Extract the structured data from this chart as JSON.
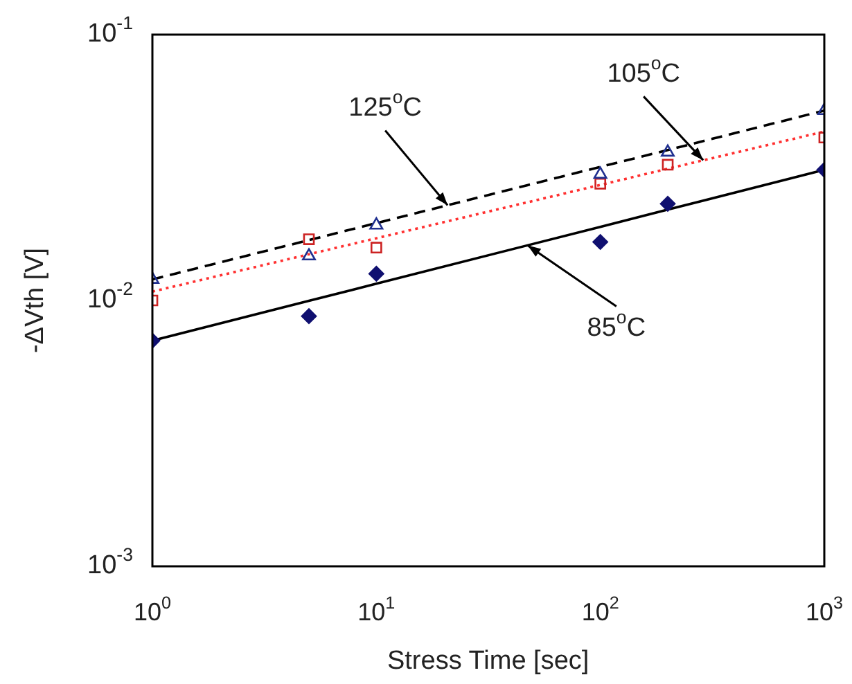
{
  "chart_data": {
    "type": "scatter",
    "xlabel": "Stress Time [sec]",
    "ylabel": "-ΔVth [V]",
    "log": "xy",
    "grid": false,
    "legend": false,
    "x": [
      1,
      5,
      10,
      100,
      200,
      1000
    ],
    "xlim": [
      1,
      1000
    ],
    "ylim": [
      0.001,
      0.1
    ],
    "xticks": [
      {
        "value": 1,
        "label": "10$^{0}$"
      },
      {
        "value": 10,
        "label": "10$^{1}$"
      },
      {
        "value": 100,
        "label": "10$^{2}$"
      },
      {
        "value": 1000,
        "label": "10$^{3}$"
      }
    ],
    "yticks": [
      {
        "value": 0.001,
        "label": "10$^{-3}$"
      },
      {
        "value": 0.01,
        "label": "10$^{-2}$"
      },
      {
        "value": 0.1,
        "label": "10$^{-1}$"
      }
    ],
    "series": [
      {
        "color": "#1f2f8f",
        "marker": "triangle",
        "values": [
          0.012,
          0.0147,
          0.0192,
          0.0298,
          0.0361,
          0.0518
        ]
      },
      {
        "color": "#cc2222",
        "marker": "square",
        "values": [
          0.01,
          0.017,
          0.0158,
          0.0275,
          0.0324,
          0.041
        ]
      },
      {
        "color": "#101070",
        "marker": "diamond",
        "values": [
          0.00706,
          0.00873,
          0.0126,
          0.0166,
          0.0231,
          0.031
        ]
      },
      {
        "type": "line",
        "color": "#000000",
        "line_style": "dashed",
        "values": [
          0.012,
          0.01687,
          0.01954,
          0.0318,
          0.0368,
          0.0518
        ]
      },
      {
        "type": "line",
        "color": "#ff3030",
        "line_style": "dotted",
        "values": [
          0.0108,
          0.01492,
          0.01714,
          0.0272,
          0.0313,
          0.0432
        ]
      },
      {
        "type": "line",
        "color": "#000000",
        "line_style": "solid",
        "values": [
          0.00706,
          0.00997,
          0.01156,
          0.01892,
          0.02196,
          0.031
        ]
      }
    ],
    "annotations": [
      {
        "text": "125$^{o}$C",
        "x": 20.8,
        "y": 0.0228
      },
      {
        "text": "105$^{o}$C",
        "x": 288,
        "y": 0.0337
      },
      {
        "text": "85$^{o}$C",
        "x": 47.4,
        "y": 0.0161
      }
    ]
  }
}
